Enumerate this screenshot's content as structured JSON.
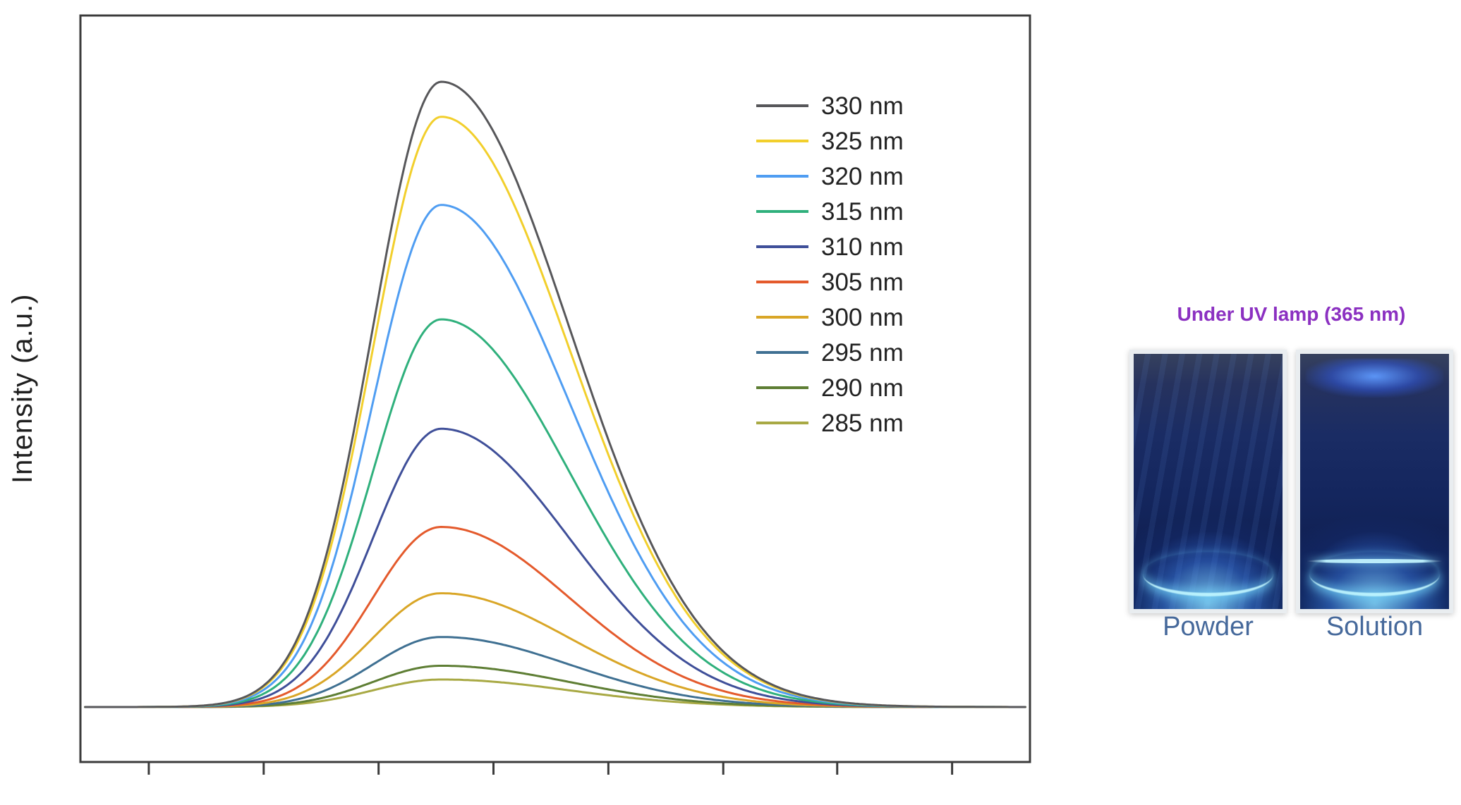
{
  "figure": {
    "ylabel": "Intensity (a.u.)"
  },
  "uv_panel": {
    "title": "Under UV lamp (365 nm)",
    "title_color": "#8b30c1",
    "label_color": "#46699b",
    "photos": [
      {
        "label": "Powder"
      },
      {
        "label": "Solution"
      }
    ]
  },
  "chart_data": {
    "type": "line",
    "title": "",
    "xlabel": "",
    "ylabel": "Intensity (a.u.)",
    "grid": false,
    "legend_position": "upper right inside",
    "x_axis": {
      "tick_labels_visible": false,
      "tick_positions_rel": [
        0.072,
        0.193,
        0.314,
        0.435,
        0.556,
        0.677,
        0.797,
        0.918
      ]
    },
    "y_axis": {
      "tick_labels_visible": false
    },
    "peak_model": {
      "center_rel": 0.38,
      "sigma_left_rel": 0.072,
      "sigma_right_rel": 0.135
    },
    "series": [
      {
        "name": "330 nm",
        "color": "#57575a",
        "peak_height": 1.0
      },
      {
        "name": "325 nm",
        "color": "#f2cf2c",
        "peak_height": 0.944
      },
      {
        "name": "320 nm",
        "color": "#4f9df2",
        "peak_height": 0.803
      },
      {
        "name": "315 nm",
        "color": "#2fb07c",
        "peak_height": 0.62
      },
      {
        "name": "310 nm",
        "color": "#3f4f99",
        "peak_height": 0.445
      },
      {
        "name": "305 nm",
        "color": "#e45a2c",
        "peak_height": 0.288
      },
      {
        "name": "300 nm",
        "color": "#d9a627",
        "peak_height": 0.182
      },
      {
        "name": "295 nm",
        "color": "#3f7092",
        "peak_height": 0.112
      },
      {
        "name": "290 nm",
        "color": "#5e7e34",
        "peak_height": 0.066
      },
      {
        "name": "285 nm",
        "color": "#a8a944",
        "peak_height": 0.044
      }
    ]
  }
}
